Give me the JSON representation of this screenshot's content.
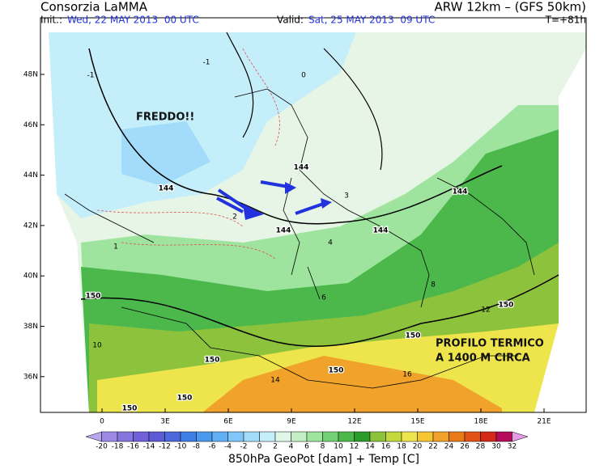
{
  "header": {
    "left": "Consorzia LaMMA",
    "right": "ARW 12km – (GFS 50km)",
    "init_label": "Init.:",
    "init": "Wed, 22 MAY 2013  00 UTC",
    "valid_label": "Valid:",
    "valid": "Sat, 25 MAY 2013  09 UTC",
    "step": "T=+81h"
  },
  "lat_labels": [
    "48N",
    "46N",
    "44N",
    "42N",
    "40N",
    "38N",
    "36N"
  ],
  "lon_labels": [
    "0",
    "3E",
    "6E",
    "9E",
    "12E",
    "15E",
    "18E",
    "21E"
  ],
  "annotations": [
    "FREDDO!!",
    "PROFILO TERMICO",
    "A 1400 M CIRCA"
  ],
  "contour_labels": [
    "144",
    "144",
    "144",
    "144",
    "144",
    "150",
    "150",
    "150",
    "150",
    "150",
    "150",
    "150",
    "-1",
    "-1",
    "0",
    "1",
    "2",
    "3",
    "4",
    "6",
    "8",
    "10",
    "12",
    "14",
    "16"
  ],
  "colorbar": {
    "labels": [
      "-20",
      "-18",
      "-16",
      "-14",
      "-12",
      "-10",
      "-8",
      "-6",
      "-4",
      "-2",
      "0",
      "2",
      "4",
      "6",
      "8",
      "10",
      "12",
      "14",
      "16",
      "18",
      "20",
      "22",
      "24",
      "26",
      "28",
      "30",
      "32"
    ],
    "colors": [
      "#b9a6ee",
      "#9e8ae6",
      "#8775df",
      "#7061d8",
      "#5d5ad6",
      "#4d68dc",
      "#3f7ee4",
      "#4a99ee",
      "#62b0f4",
      "#80c6f8",
      "#a2dcfa",
      "#c4eefa",
      "#e0f6e8",
      "#c4eec4",
      "#9ee49e",
      "#74d074",
      "#4cb84c",
      "#2a9c2a",
      "#8cc23c",
      "#c4d83c",
      "#eee44c",
      "#f4c634",
      "#f0a22a",
      "#e87a18",
      "#e25218",
      "#d42818",
      "#b40c5a",
      "#e69ae6"
    ]
  },
  "footer": "850hPa GeoPot [dam] + Temp [C]"
}
